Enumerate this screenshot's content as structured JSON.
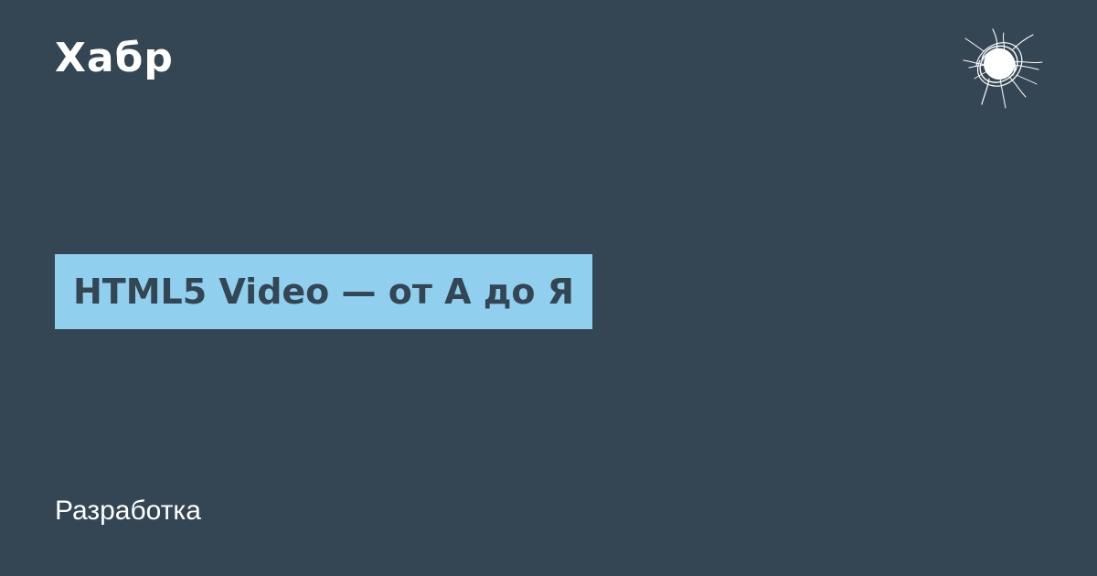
{
  "brand": {
    "name": "Хабр"
  },
  "emblem": {
    "icon": "scribble-ball-icon"
  },
  "article": {
    "title": "HTML5 Video — от А до Я"
  },
  "hub": {
    "label": "Разработка"
  },
  "colors": {
    "background": "#344653",
    "title_box": "#91cfef",
    "title_text": "#344653",
    "text": "#ffffff"
  }
}
